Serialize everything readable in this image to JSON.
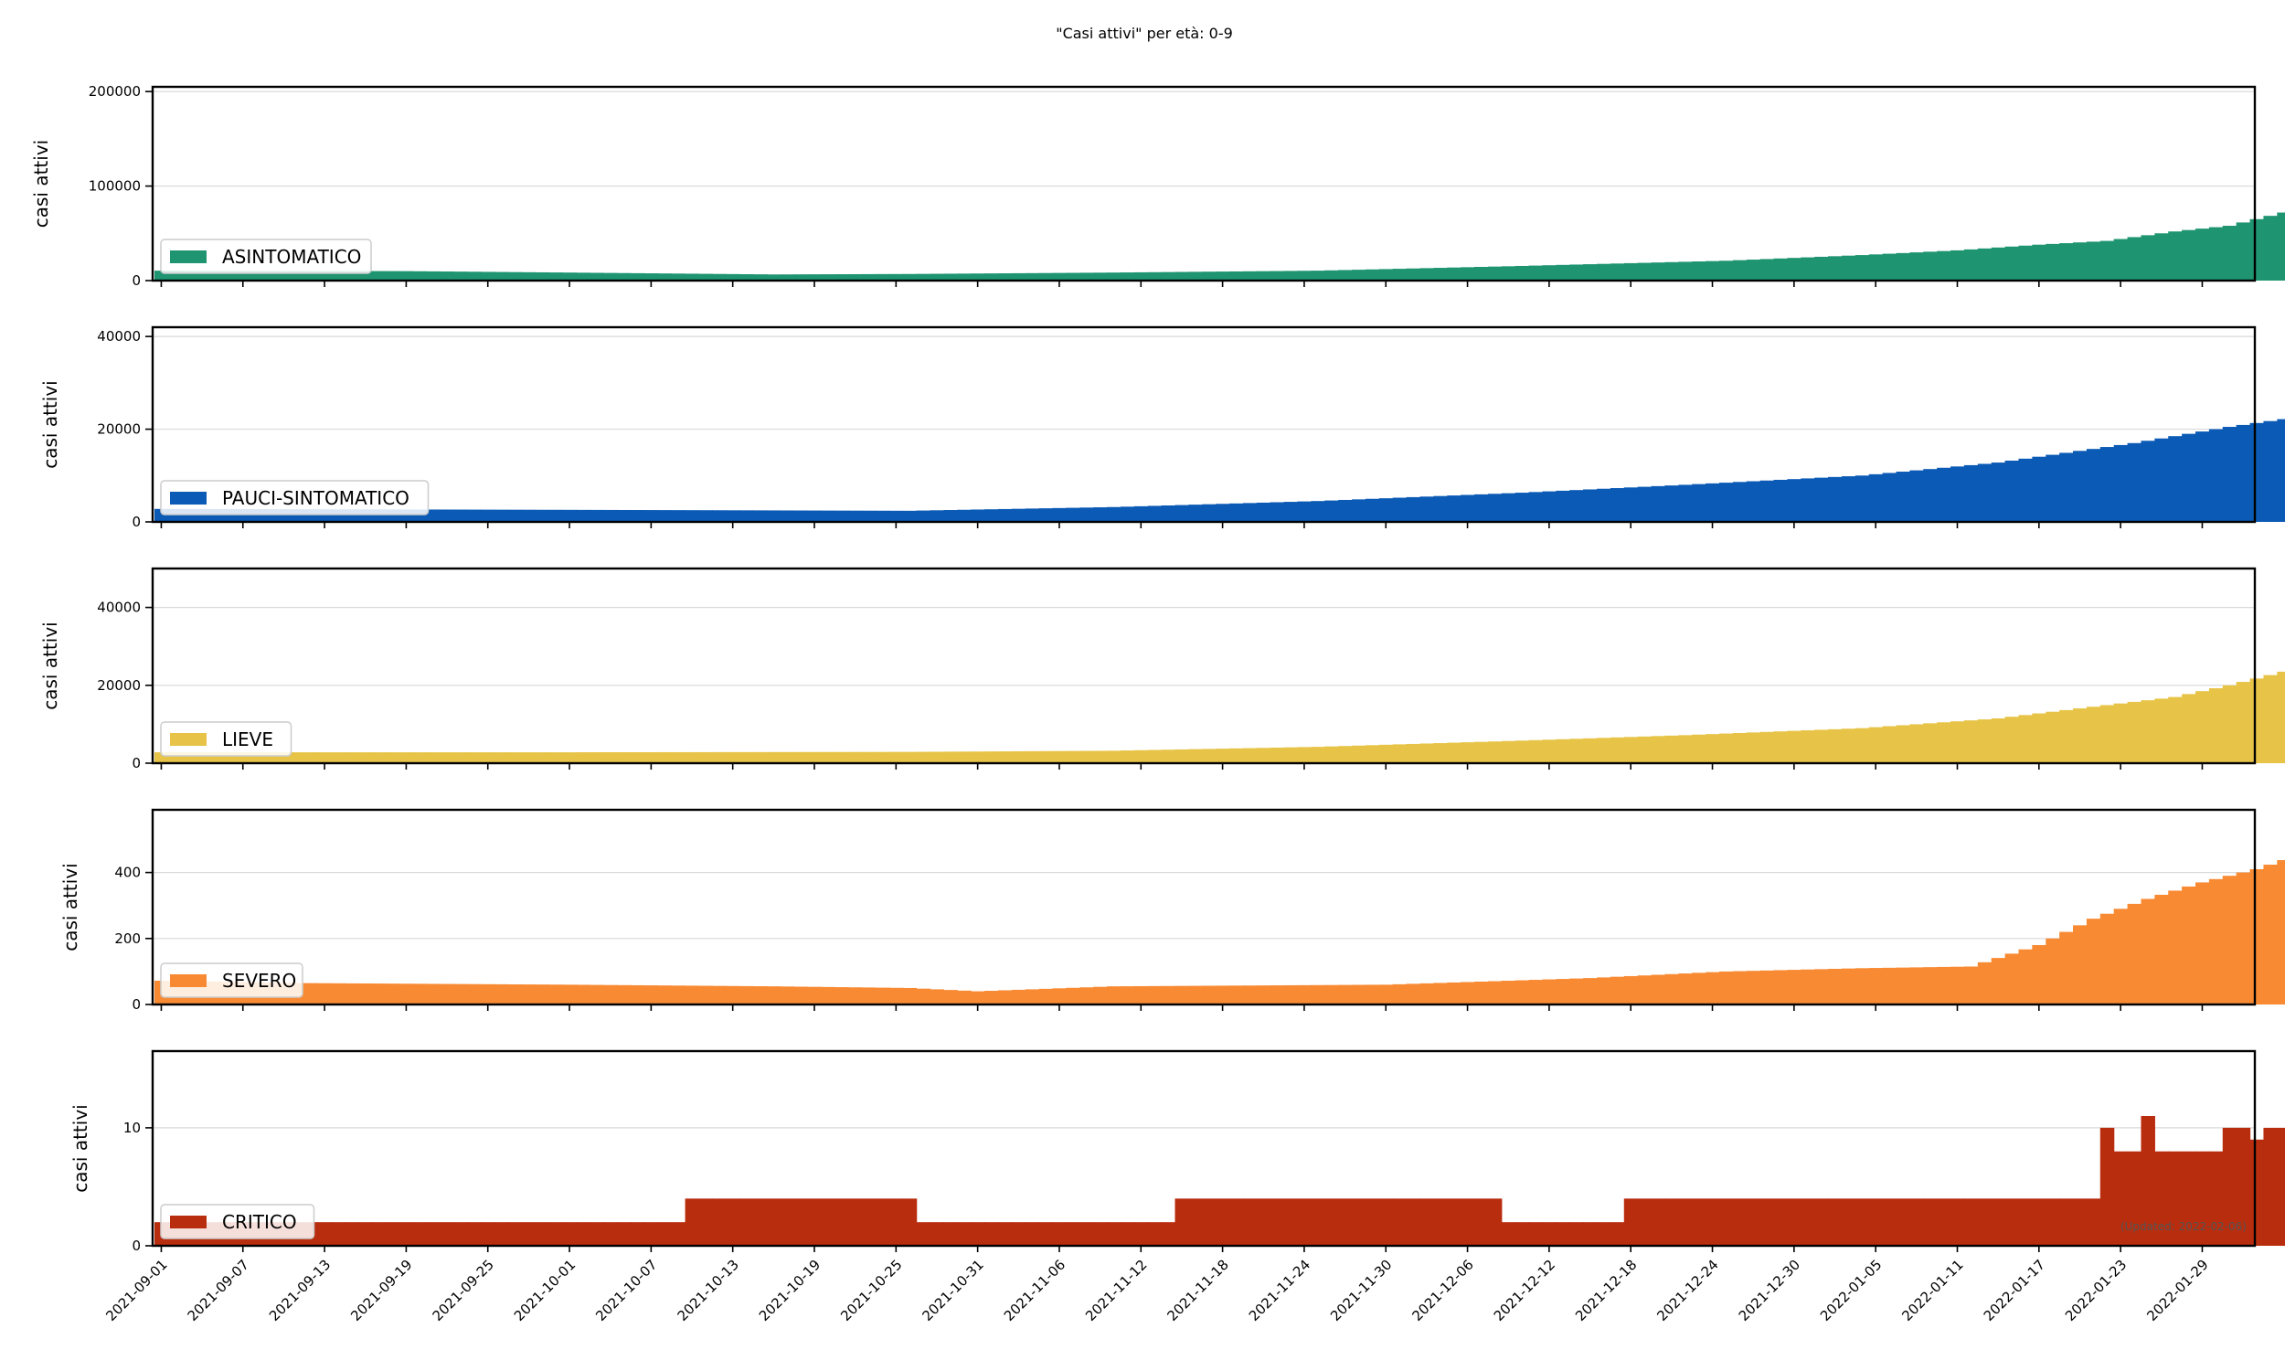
{
  "chart_data": {
    "type": "bar",
    "title": "\"Casi attivi\" per età: 0-9",
    "xlabel": "",
    "updated_note": "(Updated: 2022-02-06)",
    "x_start": "2021-08-31",
    "x_end": "2022-01-31",
    "x_ticks": [
      "2021-09-01",
      "2021-09-07",
      "2021-09-13",
      "2021-09-19",
      "2021-09-25",
      "2021-10-01",
      "2021-10-07",
      "2021-10-13",
      "2021-10-19",
      "2021-10-25",
      "2021-10-31",
      "2021-11-06",
      "2021-11-12",
      "2021-11-18",
      "2021-11-24",
      "2021-11-30",
      "2021-12-06",
      "2021-12-12",
      "2021-12-18",
      "2021-12-24",
      "2021-12-30",
      "2022-01-05",
      "2022-01-11",
      "2022-01-17",
      "2022-01-23",
      "2022-01-29"
    ],
    "grid": "horizontal",
    "legend_position": "lower-left",
    "panels": [
      {
        "name": "ASINTOMATICO",
        "color": "#1e9470",
        "ylabel": "casi attivi",
        "ylim": [
          0,
          205000
        ],
        "yticks": [
          0,
          100000,
          200000
        ],
        "knots": [
          [
            0,
            10500
          ],
          [
            18,
            10000
          ],
          [
            30,
            8500
          ],
          [
            45,
            6500
          ],
          [
            55,
            7000
          ],
          [
            70,
            8500
          ],
          [
            85,
            10500
          ],
          [
            100,
            15500
          ],
          [
            115,
            21000
          ],
          [
            125,
            27000
          ],
          [
            132,
            32000
          ],
          [
            138,
            38000
          ],
          [
            143,
            42000
          ],
          [
            148,
            52000
          ],
          [
            152,
            58000
          ],
          [
            156,
            72000
          ],
          [
            160,
            88000
          ],
          [
            164,
            115000
          ],
          [
            166,
            130000
          ],
          [
            168,
            148000
          ],
          [
            170,
            165000
          ],
          [
            172,
            182000
          ],
          [
            174,
            192000
          ],
          [
            176,
            195000
          ],
          [
            177,
            185000
          ],
          [
            178,
            188000
          ]
        ],
        "overrides": {
          "177": 185000
        }
      },
      {
        "name": "PAUCI-SINTOMATICO",
        "color": "#0b5ab5",
        "ylabel": "casi attivi",
        "ylim": [
          0,
          42000
        ],
        "yticks": [
          0,
          20000,
          40000
        ],
        "knots": [
          [
            0,
            2800
          ],
          [
            30,
            2600
          ],
          [
            55,
            2400
          ],
          [
            70,
            3200
          ],
          [
            85,
            4500
          ],
          [
            100,
            6300
          ],
          [
            112,
            8000
          ],
          [
            125,
            10000
          ],
          [
            135,
            12800
          ],
          [
            145,
            17000
          ],
          [
            152,
            20500
          ],
          [
            158,
            23000
          ],
          [
            162,
            28500
          ],
          [
            165,
            33000
          ],
          [
            168,
            34000
          ],
          [
            171,
            37500
          ],
          [
            174,
            39500
          ],
          [
            176,
            40000
          ],
          [
            177,
            38500
          ],
          [
            178,
            38500
          ]
        ],
        "overrides": {}
      },
      {
        "name": "LIEVE",
        "color": "#e7c447",
        "ylabel": "casi attivi",
        "ylim": [
          0,
          50000
        ],
        "yticks": [
          0,
          20000,
          40000
        ],
        "knots": [
          [
            0,
            2800
          ],
          [
            30,
            2800
          ],
          [
            55,
            2900
          ],
          [
            70,
            3200
          ],
          [
            85,
            4200
          ],
          [
            100,
            5800
          ],
          [
            112,
            7200
          ],
          [
            125,
            9000
          ],
          [
            135,
            11500
          ],
          [
            142,
            14500
          ],
          [
            148,
            17000
          ],
          [
            152,
            20000
          ],
          [
            156,
            23500
          ],
          [
            159,
            27500
          ],
          [
            162,
            35500
          ],
          [
            165,
            38500
          ],
          [
            168,
            42500
          ],
          [
            171,
            45000
          ],
          [
            174,
            46500
          ],
          [
            176,
            47000
          ],
          [
            177,
            46500
          ],
          [
            178,
            46500
          ]
        ],
        "overrides": {}
      },
      {
        "name": "SEVERO",
        "color": "#f88a33",
        "ylabel": "casi attivi",
        "ylim": [
          0,
          590
        ],
        "yticks": [
          0,
          200,
          400
        ],
        "knots": [
          [
            0,
            72
          ],
          [
            10,
            65
          ],
          [
            30,
            60
          ],
          [
            45,
            55
          ],
          [
            55,
            50
          ],
          [
            60,
            40
          ],
          [
            70,
            55
          ],
          [
            90,
            60
          ],
          [
            105,
            80
          ],
          [
            115,
            100
          ],
          [
            125,
            110
          ],
          [
            133,
            115
          ],
          [
            138,
            180
          ],
          [
            142,
            260
          ],
          [
            146,
            320
          ],
          [
            150,
            370
          ],
          [
            154,
            410
          ],
          [
            158,
            465
          ],
          [
            162,
            490
          ],
          [
            166,
            500
          ],
          [
            170,
            540
          ],
          [
            174,
            560
          ],
          [
            176,
            562
          ],
          [
            178,
            550
          ]
        ],
        "overrides": {
          "0": 72
        }
      },
      {
        "name": "CRITICO",
        "color": "#b82d0e",
        "ylabel": "casi attivi",
        "ylim": [
          0,
          16.5
        ],
        "yticks": [
          0,
          10
        ],
        "knots": [],
        "overrides": {},
        "values": [
          2,
          2,
          2,
          2,
          2,
          2,
          2,
          2,
          2,
          2,
          2,
          2,
          2,
          2,
          2,
          2,
          2,
          2,
          2,
          2,
          2,
          2,
          2,
          2,
          2,
          2,
          2,
          2,
          2,
          2,
          2,
          2,
          2,
          2,
          2,
          2,
          2,
          2,
          2,
          4,
          4,
          4,
          4,
          4,
          4,
          4,
          4,
          4,
          4,
          4,
          4,
          4,
          4,
          4,
          4,
          4,
          2,
          2,
          2,
          2,
          2,
          2,
          2,
          2,
          2,
          2,
          2,
          2,
          2,
          2,
          2,
          2,
          2,
          2,
          2,
          4,
          4,
          4,
          4,
          4,
          4,
          4,
          4,
          4,
          4,
          4,
          4,
          4,
          4,
          4,
          4,
          4,
          4,
          4,
          4,
          4,
          4,
          4,
          4,
          2,
          2,
          2,
          2,
          2,
          2,
          2,
          2,
          2,
          4,
          4,
          4,
          4,
          4,
          4,
          4,
          4,
          4,
          4,
          4,
          4,
          4,
          4,
          4,
          4,
          4,
          4,
          4,
          4,
          4,
          4,
          4,
          4,
          4,
          4,
          4,
          4,
          4,
          4,
          4,
          4,
          4,
          4,
          4,
          10,
          8,
          8,
          11,
          8,
          8,
          8,
          8,
          8,
          10,
          10,
          9,
          10,
          10,
          11,
          13,
          13,
          13,
          15,
          12,
          13,
          12,
          12,
          12,
          12,
          16,
          15,
          14,
          14,
          15,
          12
        ]
      }
    ]
  }
}
